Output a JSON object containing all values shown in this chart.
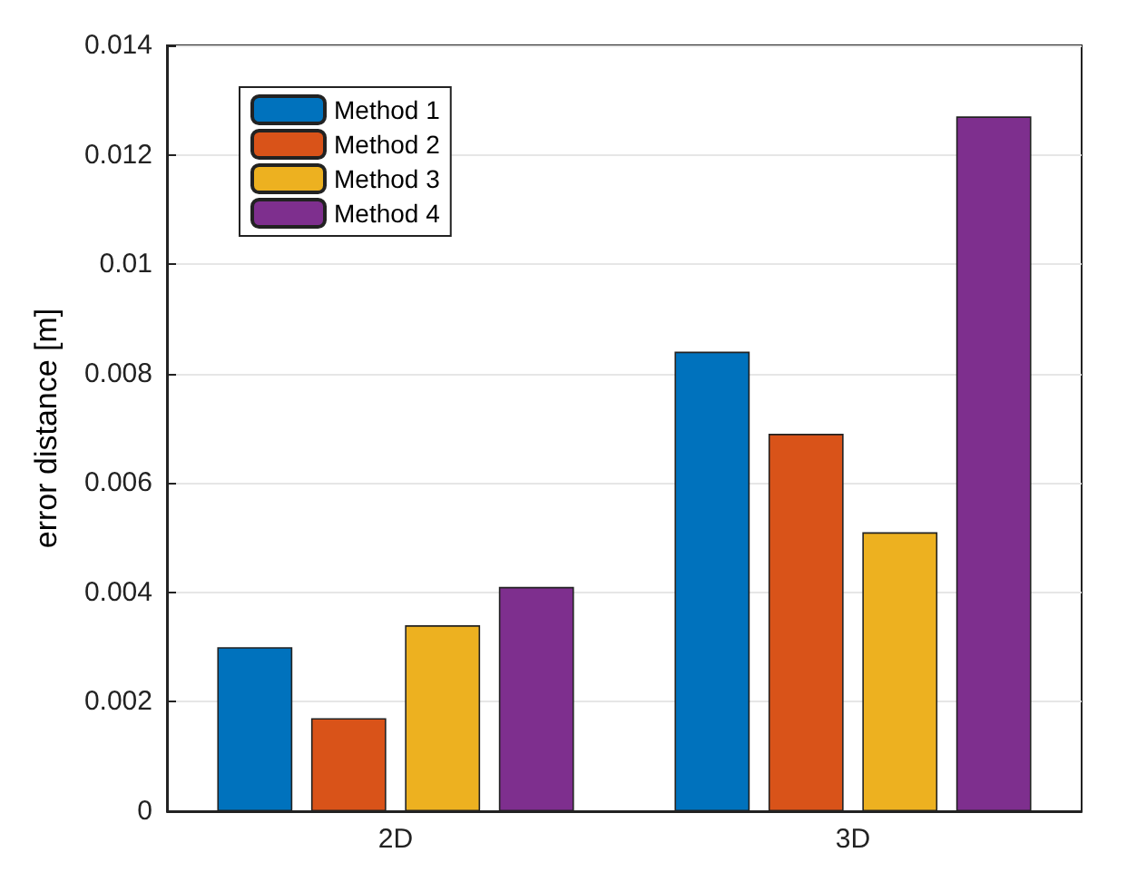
{
  "chart_data": {
    "type": "bar",
    "ylabel": "error distance [m]",
    "categories": [
      "2D",
      "3D"
    ],
    "series": [
      {
        "name": "Method 1",
        "color": "#0072bd",
        "values": [
          0.003,
          0.0084
        ]
      },
      {
        "name": "Method 2",
        "color": "#d95319",
        "values": [
          0.0017,
          0.0069
        ]
      },
      {
        "name": "Method 3",
        "color": "#edb120",
        "values": [
          0.0034,
          0.0051
        ]
      },
      {
        "name": "Method 4",
        "color": "#7e2f8e",
        "values": [
          0.0041,
          0.0127
        ]
      }
    ],
    "ylim": [
      0,
      0.014
    ],
    "yticks": [
      0,
      0.002,
      0.004,
      0.006,
      0.008,
      0.01,
      0.012,
      0.014
    ],
    "grid": "y",
    "legend": "top left"
  }
}
